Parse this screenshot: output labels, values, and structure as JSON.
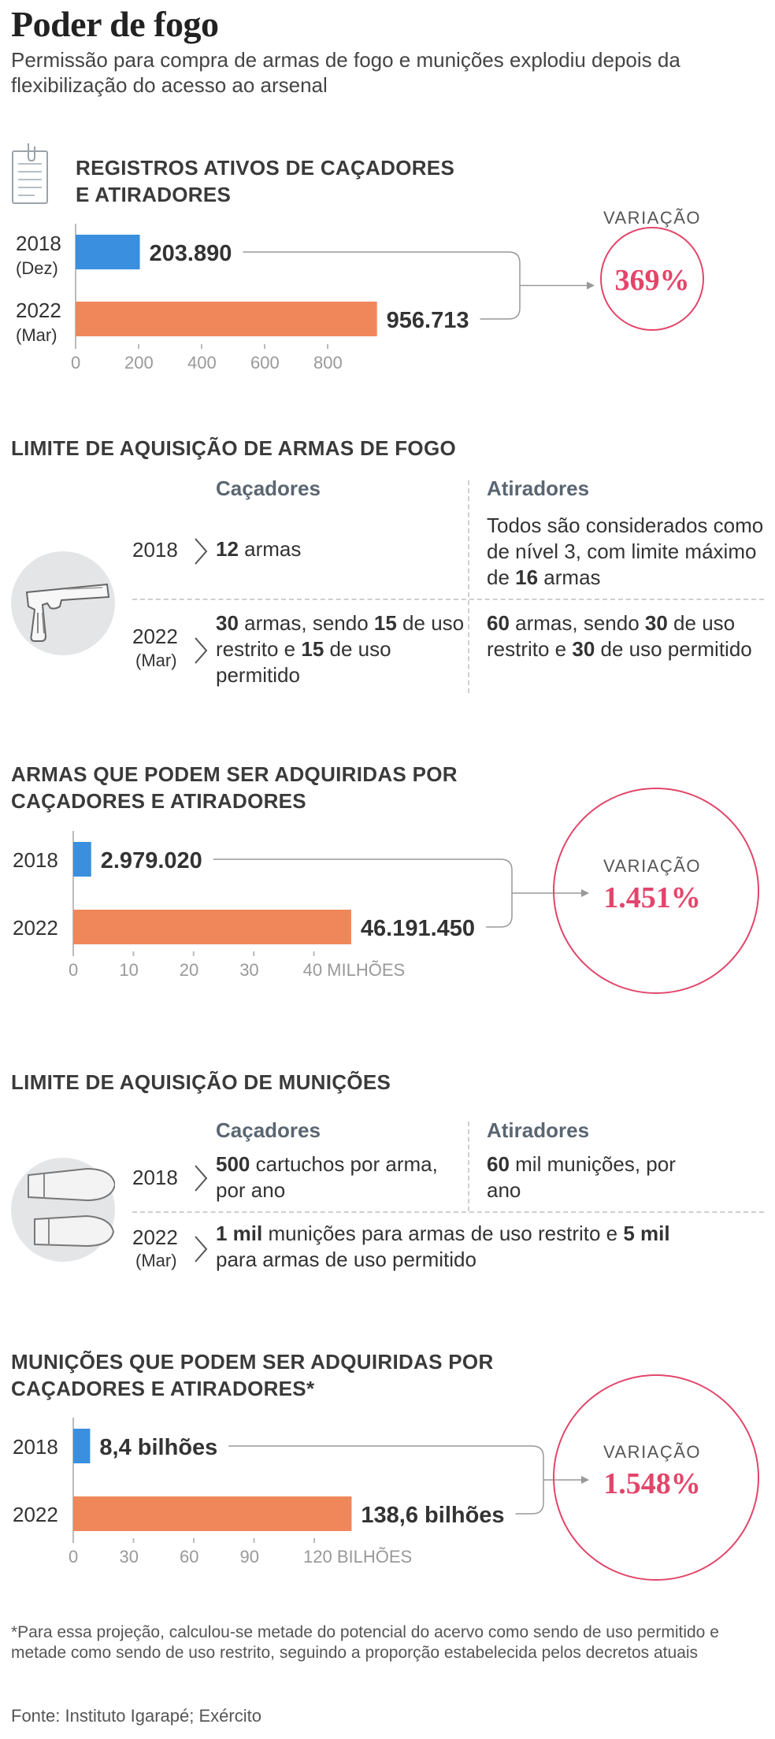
{
  "title": "Poder de fogo",
  "subtitle": "Permissão para compra de armas de fogo e munições explodiu depois da flexibilização do acesso ao arsenal",
  "colors": {
    "series_2018": "#3a8fde",
    "series_2022": "#f0875a",
    "accent": "#e3456a"
  },
  "variation_label": "VARIAÇÃO",
  "chart_data": [
    {
      "type": "bar",
      "title": "REGISTROS ATIVOS DE CAÇADORES E ATIRADORES",
      "categories": [
        "2018 (Dez)",
        "2022 (Mar)"
      ],
      "category_lines": [
        [
          "2018",
          "(Dez)"
        ],
        [
          "2022",
          "(Mar)"
        ]
      ],
      "values": [
        203.89,
        956.713
      ],
      "value_labels": [
        "203.890",
        "956.713"
      ],
      "xlim": [
        0,
        1000
      ],
      "x_ticks": [
        "0",
        "200",
        "400",
        "600",
        "800"
      ],
      "x_tick_values": [
        0,
        200,
        400,
        600,
        800
      ],
      "variation": "369%"
    },
    {
      "type": "bar",
      "title": "ARMAS QUE PODEM SER ADQUIRIDAS POR CAÇADORES E ATIRADORES",
      "categories": [
        "2018",
        "2022"
      ],
      "category_lines": [
        [
          "2018"
        ],
        [
          "2022"
        ]
      ],
      "values": [
        2.97902,
        46.19145
      ],
      "value_labels": [
        "2.979.020",
        "46.191.450"
      ],
      "xlim": [
        0,
        50
      ],
      "x_ticks": [
        "0",
        "10",
        "20",
        "30",
        "40 MILHÕES"
      ],
      "x_tick_values": [
        0,
        10,
        20,
        30,
        40
      ],
      "variation": "1.451%"
    },
    {
      "type": "bar",
      "title": "MUNIÇÕES QUE PODEM SER ADQUIRIDAS POR CAÇADORES E ATIRADORES*",
      "categories": [
        "2018",
        "2022"
      ],
      "category_lines": [
        [
          "2018"
        ],
        [
          "2022"
        ]
      ],
      "values": [
        8.4,
        138.6
      ],
      "value_labels": [
        "8,4 bilhões",
        "138,6 bilhões"
      ],
      "xlim": [
        0,
        150
      ],
      "x_ticks": [
        "0",
        "30",
        "60",
        "90",
        "120 BILHÕES"
      ],
      "x_tick_values": [
        0,
        30,
        60,
        90,
        120
      ],
      "variation": "1.548%"
    }
  ],
  "weapons_limit": {
    "heading": "LIMITE DE AQUISIÇÃO DE ARMAS DE FOGO",
    "col_cacadores": "Caçadores",
    "col_atiradores": "Atiradores",
    "row1_year": "2018",
    "row1_cacadores": "<b>12</b> armas",
    "row1_atiradores": "Todos são considerados como de nível 3, com limite máximo de <b>16</b> armas",
    "row2_year": "2022",
    "row2_year_sub": "(Mar)",
    "row2_cacadores": "<b>30</b> armas, sendo <b>15</b> de uso restrito e <b>15</b> de uso permitido",
    "row2_atiradores": "<b>60</b> armas, sendo <b>30</b> de uso restrito e <b>30</b> de uso permitido"
  },
  "ammo_limit": {
    "heading": "LIMITE DE AQUISIÇÃO DE MUNIÇÕES",
    "col_cacadores": "Caçadores",
    "col_atiradores": "Atiradores",
    "row1_year": "2018",
    "row1_cacadores": "<b>500</b> cartuchos por arma, por ano",
    "row1_atiradores": "<b>60</b> mil munições, por ano",
    "row2_year": "2022",
    "row2_year_sub": "(Mar)",
    "row2_text": "<b>1 mil</b> munições para armas de uso restrito e <b>5 mil</b> para armas de uso permitido"
  },
  "icons": [
    "document-icon",
    "pistol-icon",
    "bullets-icon"
  ],
  "footnote": "*Para essa projeção, calculou-se metade do potencial do acervo como sendo de uso permitido e metade como sendo de uso restrito, seguindo a proporção estabelecida pelos decretos atuais",
  "source": "Fonte: Instituto Igarapé; Exército"
}
